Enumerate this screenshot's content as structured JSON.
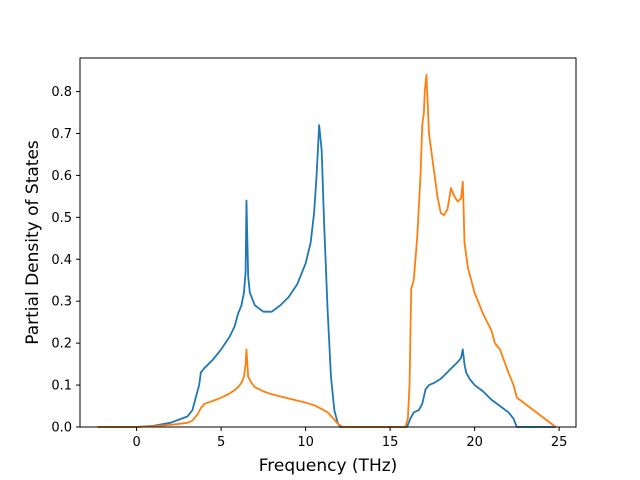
{
  "chart_data": {
    "type": "line",
    "title": "",
    "xlabel": "Frequency (THz)",
    "ylabel": "Partial Density of States",
    "xlim": [
      -3.35,
      26.0
    ],
    "ylim": [
      0.0,
      0.88
    ],
    "xticks": [
      0,
      5,
      10,
      15,
      20,
      25
    ],
    "yticks": [
      0.0,
      0.1,
      0.2,
      0.3,
      0.4,
      0.5,
      0.6,
      0.7,
      0.8
    ],
    "xtick_labels": [
      "0",
      "5",
      "10",
      "15",
      "20",
      "25"
    ],
    "ytick_labels": [
      "0.0",
      "0.1",
      "0.2",
      "0.3",
      "0.4",
      "0.5",
      "0.6",
      "0.7",
      "0.8"
    ],
    "grid": false,
    "legend": "none",
    "series": [
      {
        "color": "#1f77b4",
        "x": [
          -2.3,
          0.0,
          1.0,
          2.0,
          3.0,
          3.3,
          3.5,
          3.7,
          3.8,
          4.0,
          4.5,
          5.0,
          5.5,
          5.8,
          6.0,
          6.2,
          6.35,
          6.45,
          6.5,
          6.6,
          6.7,
          7.0,
          7.5,
          8.0,
          8.5,
          9.0,
          9.5,
          10.0,
          10.3,
          10.5,
          10.65,
          10.8,
          10.95,
          11.1,
          11.3,
          11.5,
          11.7,
          11.9,
          12.05,
          12.2,
          16.0,
          16.2,
          16.4,
          16.7,
          16.9,
          17.1,
          17.3,
          17.6,
          18.0,
          18.5,
          19.0,
          19.2,
          19.3,
          19.4,
          19.5,
          19.7,
          20.0,
          20.5,
          21.0,
          21.5,
          22.0,
          22.3,
          22.5,
          24.8
        ],
        "y": [
          0.0,
          0.0,
          0.003,
          0.01,
          0.025,
          0.04,
          0.07,
          0.1,
          0.13,
          0.14,
          0.16,
          0.185,
          0.215,
          0.24,
          0.27,
          0.29,
          0.32,
          0.37,
          0.54,
          0.36,
          0.32,
          0.29,
          0.275,
          0.275,
          0.29,
          0.31,
          0.34,
          0.39,
          0.44,
          0.51,
          0.6,
          0.72,
          0.66,
          0.48,
          0.28,
          0.12,
          0.04,
          0.01,
          0.0,
          0.0,
          0.0,
          0.02,
          0.035,
          0.04,
          0.055,
          0.09,
          0.1,
          0.105,
          0.115,
          0.135,
          0.155,
          0.165,
          0.185,
          0.15,
          0.13,
          0.115,
          0.1,
          0.085,
          0.065,
          0.05,
          0.035,
          0.02,
          0.0,
          0.0
        ]
      },
      {
        "color": "#ff7f0e",
        "x": [
          -2.3,
          0.0,
          1.0,
          2.0,
          3.0,
          3.3,
          3.6,
          3.8,
          4.0,
          4.5,
          5.0,
          5.5,
          5.8,
          6.0,
          6.2,
          6.35,
          6.45,
          6.5,
          6.6,
          6.8,
          7.0,
          7.5,
          8.0,
          9.0,
          10.0,
          10.5,
          11.0,
          11.3,
          11.6,
          11.9,
          12.2,
          15.9,
          16.05,
          16.15,
          16.25,
          16.4,
          16.6,
          16.8,
          16.9,
          17.0,
          17.05,
          17.15,
          17.3,
          17.5,
          17.8,
          18.0,
          18.2,
          18.4,
          18.5,
          18.6,
          18.8,
          19.0,
          19.2,
          19.3,
          19.35,
          19.4,
          19.6,
          20.0,
          20.5,
          21.0,
          21.2,
          21.5,
          22.0,
          22.3,
          22.5,
          24.8
        ],
        "y": [
          0.0,
          0.0,
          0.002,
          0.005,
          0.01,
          0.015,
          0.03,
          0.045,
          0.055,
          0.062,
          0.07,
          0.08,
          0.088,
          0.095,
          0.105,
          0.12,
          0.15,
          0.185,
          0.12,
          0.105,
          0.095,
          0.085,
          0.078,
          0.068,
          0.058,
          0.052,
          0.042,
          0.035,
          0.022,
          0.008,
          0.0,
          0.0,
          0.02,
          0.1,
          0.33,
          0.35,
          0.45,
          0.6,
          0.72,
          0.75,
          0.8,
          0.84,
          0.7,
          0.64,
          0.55,
          0.51,
          0.505,
          0.52,
          0.545,
          0.57,
          0.55,
          0.538,
          0.545,
          0.585,
          0.52,
          0.44,
          0.38,
          0.32,
          0.27,
          0.23,
          0.2,
          0.185,
          0.13,
          0.1,
          0.07,
          0.0
        ]
      }
    ]
  }
}
